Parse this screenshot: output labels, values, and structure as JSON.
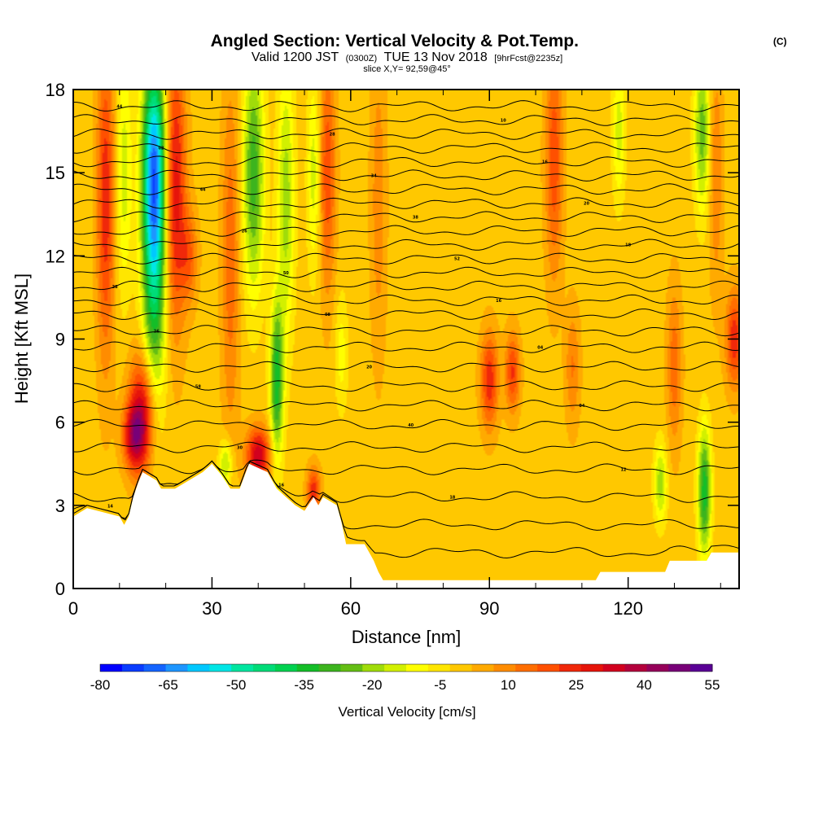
{
  "title": {
    "main": "Angled Section: Vertical Velocity & Pot.Temp.",
    "unit": "(C)",
    "valid_prefix": "Valid 1200 JST",
    "valid_utc": "(0300Z)",
    "valid_date": "TUE 13 Nov 2018",
    "forecast": "[9hrFcst@2235z]",
    "slice": "slice X,Y= 92,59@45°"
  },
  "chart_data": {
    "type": "heatmap",
    "xlabel": "Distance [nm]",
    "ylabel": "Height [Kft MSL]",
    "xlim": [
      0,
      144
    ],
    "ylim": [
      0,
      18
    ],
    "x_ticks": [
      0,
      30,
      60,
      90,
      120
    ],
    "x_tick_labels": [
      "0",
      "30",
      "60",
      "90",
      "120"
    ],
    "x_minor_ticks": [
      10,
      20,
      40,
      50,
      70,
      80,
      100,
      110,
      130,
      140
    ],
    "y_ticks": [
      0,
      3,
      6,
      9,
      12,
      15,
      18
    ],
    "y_tick_labels": [
      "0",
      "3",
      "6",
      "9",
      "12",
      "15",
      "18"
    ],
    "background_value_cm_s": 0,
    "terrain_profile": [
      [
        0,
        2.6
      ],
      [
        3,
        2.9
      ],
      [
        10,
        2.6
      ],
      [
        11,
        2.3
      ],
      [
        12,
        2.6
      ],
      [
        13,
        3.3
      ],
      [
        14,
        3.8
      ],
      [
        15,
        4.2
      ],
      [
        18,
        3.9
      ],
      [
        19,
        3.6
      ],
      [
        22,
        3.6
      ],
      [
        25,
        3.9
      ],
      [
        28,
        4.2
      ],
      [
        30,
        4.5
      ],
      [
        32,
        4.1
      ],
      [
        34,
        3.6
      ],
      [
        36,
        3.6
      ],
      [
        38,
        4.5
      ],
      [
        42,
        4.2
      ],
      [
        44,
        3.6
      ],
      [
        46,
        3.3
      ],
      [
        48,
        3.0
      ],
      [
        50,
        2.8
      ],
      [
        52,
        3.3
      ],
      [
        53,
        3.0
      ],
      [
        54,
        3.3
      ],
      [
        57,
        3.0
      ],
      [
        58,
        2.4
      ],
      [
        59,
        1.6
      ],
      [
        63,
        1.6
      ],
      [
        64,
        1.3
      ],
      [
        65,
        1.0
      ],
      [
        66,
        0.6
      ],
      [
        67,
        0.3
      ],
      [
        113,
        0.3
      ],
      [
        114,
        0.6
      ],
      [
        128,
        0.6
      ],
      [
        129,
        1.0
      ],
      [
        137,
        1.0
      ],
      [
        138,
        1.3
      ],
      [
        144,
        1.3
      ]
    ],
    "velocity_features": [
      {
        "x": 7,
        "y": 14,
        "sx": 1.3,
        "sy": 4.0,
        "value": 25
      },
      {
        "x": 11,
        "y": 15,
        "sx": 1.2,
        "sy": 3.0,
        "value": -15
      },
      {
        "x": 17.5,
        "y": 12.5,
        "sx": 1.8,
        "sy": 4.0,
        "value": -45
      },
      {
        "x": 17.5,
        "y": 15.5,
        "sx": 1.8,
        "sy": 2.5,
        "value": -35
      },
      {
        "x": 22,
        "y": 14.5,
        "sx": 1.6,
        "sy": 3.5,
        "value": 30
      },
      {
        "x": 15,
        "y": 6.3,
        "sx": 2.0,
        "sy": 1.5,
        "value": 35
      },
      {
        "x": 13,
        "y": 5.5,
        "sx": 1.6,
        "sy": 0.8,
        "value": 28
      },
      {
        "x": 25,
        "y": 12,
        "sx": 1.3,
        "sy": 1.2,
        "value": 16
      },
      {
        "x": 34,
        "y": 12,
        "sx": 1.3,
        "sy": 4.5,
        "value": 15
      },
      {
        "x": 39,
        "y": 15,
        "sx": 1.6,
        "sy": 3.0,
        "value": -30
      },
      {
        "x": 44,
        "y": 7.5,
        "sx": 1.0,
        "sy": 2.0,
        "value": -35
      },
      {
        "x": 46,
        "y": 14,
        "sx": 1.3,
        "sy": 3.5,
        "value": -20
      },
      {
        "x": 40,
        "y": 4.8,
        "sx": 1.8,
        "sy": 0.7,
        "value": 35
      },
      {
        "x": 33,
        "y": 4.5,
        "sx": 1.0,
        "sy": 0.6,
        "value": -20
      },
      {
        "x": 52,
        "y": 15,
        "sx": 1.0,
        "sy": 2.5,
        "value": -15
      },
      {
        "x": 55,
        "y": 15,
        "sx": 1.2,
        "sy": 3.0,
        "value": 20
      },
      {
        "x": 58,
        "y": 8.5,
        "sx": 1.0,
        "sy": 1.5,
        "value": -10
      },
      {
        "x": 66,
        "y": 14,
        "sx": 1.2,
        "sy": 4.0,
        "value": 10
      },
      {
        "x": 52,
        "y": 3.5,
        "sx": 1.0,
        "sy": 0.6,
        "value": 25
      },
      {
        "x": 90,
        "y": 7.5,
        "sx": 1.3,
        "sy": 1.2,
        "value": 25
      },
      {
        "x": 95,
        "y": 7.8,
        "sx": 1.1,
        "sy": 1.0,
        "value": 22
      },
      {
        "x": 104,
        "y": 15.5,
        "sx": 1.3,
        "sy": 3.0,
        "value": 20
      },
      {
        "x": 108,
        "y": 8,
        "sx": 1.1,
        "sy": 1.5,
        "value": 12
      },
      {
        "x": 118,
        "y": 16.5,
        "sx": 1.0,
        "sy": 1.8,
        "value": -15
      },
      {
        "x": 127,
        "y": 3.8,
        "sx": 1.0,
        "sy": 1.0,
        "value": -20
      },
      {
        "x": 136.5,
        "y": 3.5,
        "sx": 1.0,
        "sy": 1.6,
        "value": -35
      },
      {
        "x": 136,
        "y": 16.5,
        "sx": 1.2,
        "sy": 2.0,
        "value": -25
      },
      {
        "x": 130,
        "y": 8,
        "sx": 1.1,
        "sy": 2.0,
        "value": 15
      },
      {
        "x": 143,
        "y": 9,
        "sx": 1.3,
        "sy": 1.2,
        "value": 25
      },
      {
        "x": 139,
        "y": 15,
        "sx": 1.0,
        "sy": 3.0,
        "value": 12
      }
    ],
    "isentropes": [
      {
        "level": 1.3,
        "label": "14"
      },
      {
        "level": 2.3,
        "label": "16"
      },
      {
        "level": 3.3,
        "label": "18"
      },
      {
        "level": 4.3,
        "label": "12"
      },
      {
        "level": 5.1,
        "label": "30"
      },
      {
        "level": 5.9,
        "label": "40"
      },
      {
        "level": 6.6,
        "label": "04"
      },
      {
        "level": 7.3,
        "label": "58"
      },
      {
        "level": 8.0,
        "label": "20"
      },
      {
        "level": 8.7,
        "label": "04"
      },
      {
        "level": 9.3,
        "label": "26"
      },
      {
        "level": 9.9,
        "label": "08"
      },
      {
        "level": 10.4,
        "label": "16"
      },
      {
        "level": 10.9,
        "label": "28"
      },
      {
        "level": 11.4,
        "label": "50"
      },
      {
        "level": 11.9,
        "label": "52"
      },
      {
        "level": 12.4,
        "label": "18"
      },
      {
        "level": 12.9,
        "label": "26"
      },
      {
        "level": 13.4,
        "label": "38"
      },
      {
        "level": 13.9,
        "label": "20"
      },
      {
        "level": 14.4,
        "label": "44"
      },
      {
        "level": 14.9,
        "label": "34"
      },
      {
        "level": 15.4,
        "label": "16"
      },
      {
        "level": 15.9,
        "label": "02"
      },
      {
        "level": 16.4,
        "label": "28"
      },
      {
        "level": 16.9,
        "label": "10"
      },
      {
        "level": 17.4,
        "label": "44"
      }
    ]
  },
  "colorbar": {
    "title": "Vertical Velocity [cm/s]",
    "min": -80,
    "max": 55,
    "step": 5,
    "tick_labels": [
      "-80",
      "-65",
      "-50",
      "-35",
      "-20",
      "-5",
      "10",
      "25",
      "40",
      "55"
    ],
    "colors": [
      "#0000ff",
      "#0a3cff",
      "#1464ff",
      "#1e96ff",
      "#00c8ff",
      "#00e6e6",
      "#00e6a0",
      "#00dc78",
      "#00d250",
      "#14be28",
      "#3cb41e",
      "#64be14",
      "#a0dc0a",
      "#d2f000",
      "#ffff00",
      "#ffe600",
      "#ffc800",
      "#ffaa00",
      "#ff8c00",
      "#ff6e00",
      "#ff5000",
      "#f0280a",
      "#e6140a",
      "#d2001e",
      "#b4003c",
      "#96005a",
      "#780078",
      "#5a0096"
    ]
  }
}
